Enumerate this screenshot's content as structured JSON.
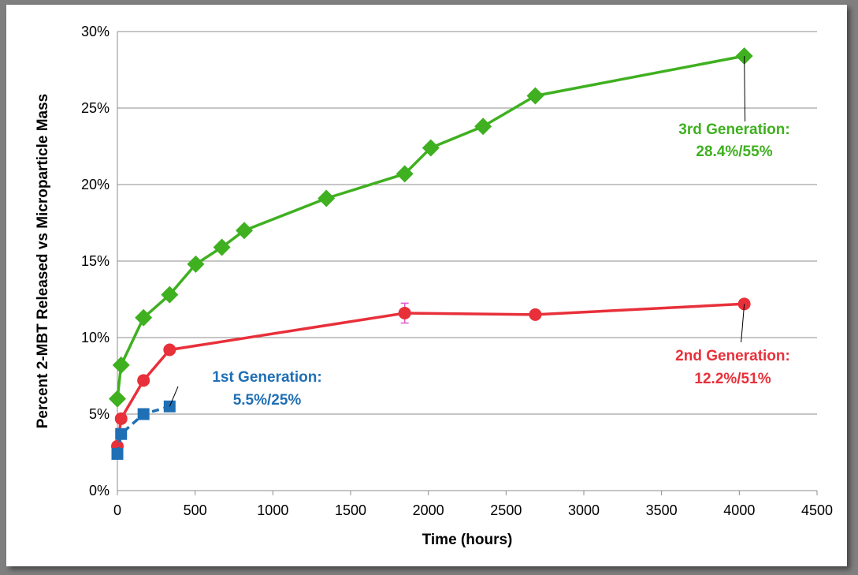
{
  "chart_data": {
    "type": "line",
    "title": "",
    "xlabel": "Time (hours)",
    "ylabel": "Percent 2-MBT Released vs Microparticle Mass",
    "xlim": [
      0,
      4500
    ],
    "ylim": [
      0,
      30
    ],
    "x_ticks": [
      "0",
      "500",
      "1000",
      "1500",
      "2000",
      "2500",
      "3000",
      "3500",
      "4000",
      "4500"
    ],
    "y_ticks": [
      "0%",
      "5%",
      "10%",
      "15%",
      "20%",
      "25%",
      "30%"
    ],
    "grid": "horizontal",
    "legend": "none",
    "series": [
      {
        "key": "first",
        "color": "#1f6fb4",
        "marker": "square",
        "line_style": "dashed",
        "x": [
          0,
          24,
          168,
          336
        ],
        "y": [
          2.4,
          3.7,
          5.0,
          5.5
        ]
      },
      {
        "key": "second",
        "color": "#e8303a",
        "marker": "circle",
        "line_style": "solid",
        "x": [
          0,
          24,
          168,
          336,
          1848,
          2688,
          4032
        ],
        "y": [
          2.9,
          4.7,
          7.2,
          9.2,
          11.6,
          11.5,
          12.2
        ],
        "error": [
          0,
          0,
          0,
          0,
          0.65,
          0,
          0
        ]
      },
      {
        "key": "third",
        "color": "#3fb020",
        "marker": "diamond",
        "line_style": "solid",
        "x": [
          0,
          24,
          168,
          336,
          504,
          672,
          816,
          1344,
          1848,
          2016,
          2352,
          2688,
          4032
        ],
        "y": [
          6.0,
          8.2,
          11.3,
          12.8,
          14.8,
          15.9,
          17.0,
          19.1,
          20.7,
          22.4,
          23.8,
          25.8,
          28.4
        ]
      }
    ],
    "annotations": [
      {
        "series": "first",
        "line1": "1st Generation:",
        "line2": "5.5%/25%",
        "color": "#1f6fb4"
      },
      {
        "series": "second",
        "line1": "2nd Generation:",
        "line2": "12.2%/51%",
        "color": "#e8303a"
      },
      {
        "series": "third",
        "line1": "3rd Generation:",
        "line2": "28.4%/55%",
        "color": "#3fb020"
      }
    ]
  }
}
